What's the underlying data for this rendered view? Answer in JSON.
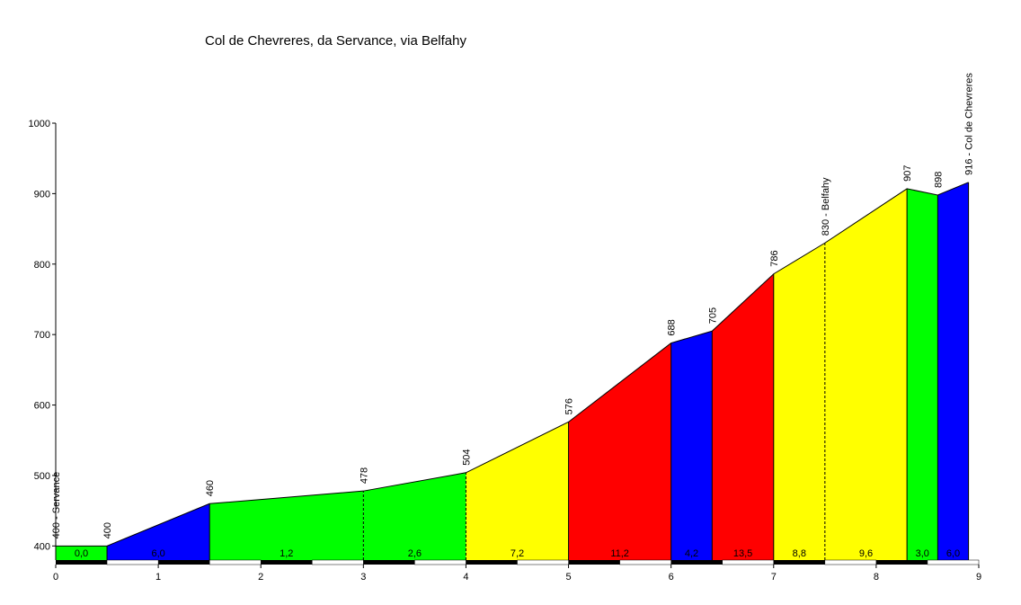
{
  "chart_data": {
    "type": "area",
    "title": "Col de Chevreres, da Servance, via Belfahy",
    "xlabel": "",
    "ylabel": "",
    "xlim": [
      0,
      9
    ],
    "ylim": [
      380,
      1000
    ],
    "x_ticks": [
      "0",
      "1",
      "2",
      "3",
      "4",
      "5",
      "6",
      "7",
      "8",
      "9"
    ],
    "y_ticks": [
      "400",
      "500",
      "600",
      "700",
      "800",
      "900",
      "1000"
    ],
    "grid": false,
    "profile": [
      {
        "x": 0.0,
        "y": 400
      },
      {
        "x": 0.5,
        "y": 400
      },
      {
        "x": 1.5,
        "y": 460
      },
      {
        "x": 3.0,
        "y": 478
      },
      {
        "x": 4.0,
        "y": 504
      },
      {
        "x": 5.0,
        "y": 576
      },
      {
        "x": 6.0,
        "y": 688
      },
      {
        "x": 6.4,
        "y": 705
      },
      {
        "x": 7.0,
        "y": 786
      },
      {
        "x": 7.5,
        "y": 830
      },
      {
        "x": 8.3,
        "y": 907
      },
      {
        "x": 8.6,
        "y": 898
      },
      {
        "x": 8.9,
        "y": 916
      }
    ],
    "segments": [
      {
        "x0": 0.0,
        "x1": 0.5,
        "gradient": "0,0",
        "color": "#00ff00",
        "label_x": 0.25
      },
      {
        "x0": 0.5,
        "x1": 1.5,
        "gradient": "6,0",
        "color": "#0000ff",
        "label_x": 1.0
      },
      {
        "x0": 1.5,
        "x1": 3.0,
        "gradient": "1,2",
        "color": "#00ff00",
        "label_x": 2.25
      },
      {
        "x0": 3.0,
        "x1": 4.0,
        "gradient": "2,6",
        "color": "#00ff00",
        "label_x": 3.5
      },
      {
        "x0": 4.0,
        "x1": 5.0,
        "gradient": "7,2",
        "color": "#ffff00",
        "label_x": 4.5
      },
      {
        "x0": 5.0,
        "x1": 6.0,
        "gradient": "11,2",
        "color": "#ff0000",
        "label_x": 5.5
      },
      {
        "x0": 6.0,
        "x1": 6.4,
        "gradient": "4,2",
        "color": "#0000ff",
        "label_x": 6.2
      },
      {
        "x0": 6.4,
        "x1": 7.0,
        "gradient": "13,5",
        "color": "#ff0000",
        "label_x": 6.7
      },
      {
        "x0": 7.0,
        "x1": 7.5,
        "gradient": "8,8",
        "color": "#ffff00",
        "label_x": 7.25
      },
      {
        "x0": 7.5,
        "x1": 8.3,
        "gradient": "9,6",
        "color": "#ffff00",
        "label_x": 7.9
      },
      {
        "x0": 8.3,
        "x1": 8.6,
        "gradient": "3,0",
        "color": "#00ff00",
        "label_x": 8.45
      },
      {
        "x0": 8.6,
        "x1": 8.9,
        "gradient": "6,0",
        "color": "#0000ff",
        "label_x": 8.75
      }
    ],
    "point_labels": [
      {
        "x": 0.0,
        "y": 400,
        "text": "400 - Servance"
      },
      {
        "x": 0.5,
        "y": 400,
        "text": "400"
      },
      {
        "x": 1.5,
        "y": 460,
        "text": "460"
      },
      {
        "x": 3.0,
        "y": 478,
        "text": "478"
      },
      {
        "x": 4.0,
        "y": 504,
        "text": "504"
      },
      {
        "x": 5.0,
        "y": 576,
        "text": "576"
      },
      {
        "x": 6.0,
        "y": 688,
        "text": "688"
      },
      {
        "x": 6.4,
        "y": 705,
        "text": "705"
      },
      {
        "x": 7.0,
        "y": 786,
        "text": "786"
      },
      {
        "x": 7.5,
        "y": 830,
        "text": "830 - Belfahy"
      },
      {
        "x": 8.3,
        "y": 907,
        "text": "907"
      },
      {
        "x": 8.6,
        "y": 898,
        "text": "898"
      },
      {
        "x": 8.9,
        "y": 916,
        "text": "916 - Col de Chevreres"
      }
    ],
    "dashed_boundaries": [
      3.0,
      4.0,
      7.5
    ]
  }
}
